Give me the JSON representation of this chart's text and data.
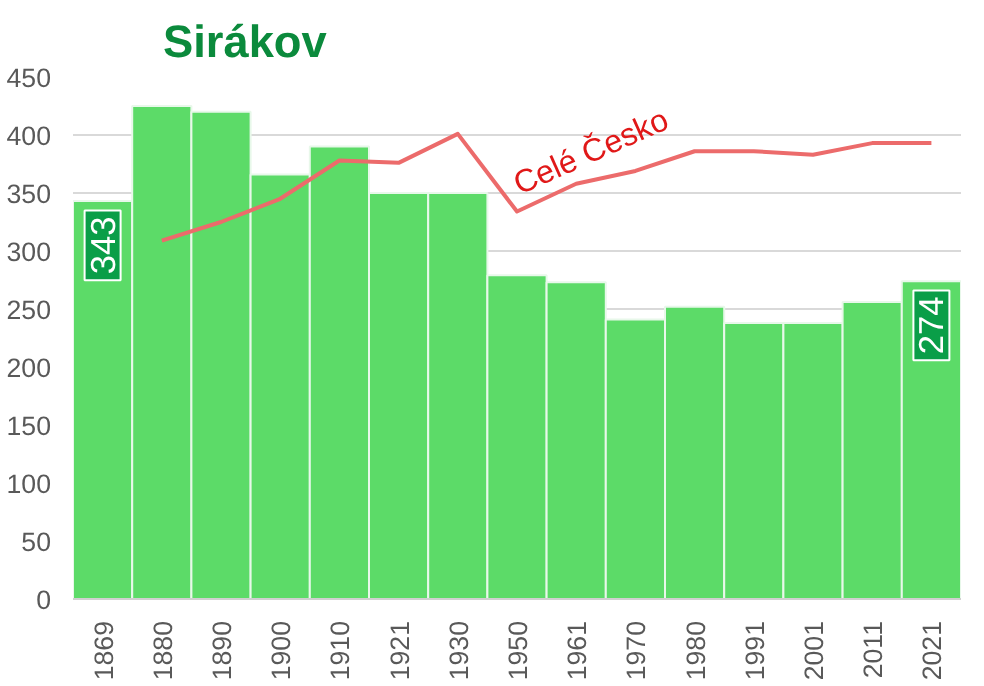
{
  "chart_data": {
    "type": "bar",
    "title": "Sirákov",
    "categories": [
      "1869",
      "1880",
      "1890",
      "1900",
      "1910",
      "1921",
      "1930",
      "1950",
      "1961",
      "1970",
      "1980",
      "1991",
      "2001",
      "2011",
      "2021"
    ],
    "series": [
      {
        "color": "#5cdb68",
        "values": [
          343,
          425,
          420,
          366,
          390,
          350,
          350,
          279,
          273,
          241,
          252,
          238,
          238,
          256,
          274
        ],
        "value_labels": [
          "343",
          null,
          null,
          null,
          null,
          null,
          null,
          null,
          null,
          null,
          null,
          null,
          null,
          null,
          "274"
        ]
      },
      {
        "type": "line",
        "name": "Celé Česko",
        "color": "#ec6b6b",
        "values": [
          null,
          309,
          325,
          345,
          378,
          376,
          401,
          334,
          358,
          369,
          386,
          386,
          383,
          393,
          393
        ]
      }
    ],
    "ylim": [
      0,
      450
    ],
    "yticks": [
      0,
      50,
      100,
      150,
      200,
      250,
      300,
      350,
      400,
      450
    ],
    "grid": "y"
  }
}
